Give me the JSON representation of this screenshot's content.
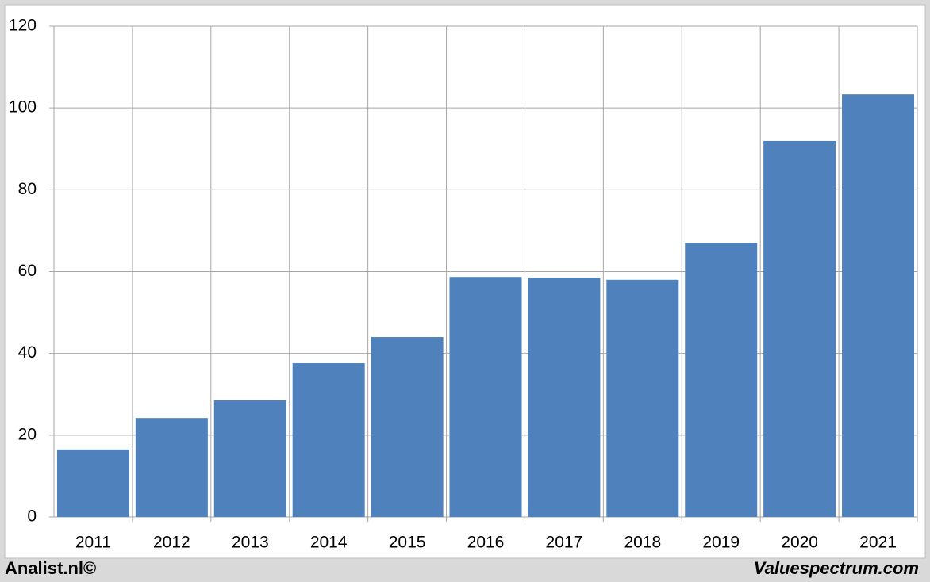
{
  "chart_data": {
    "type": "bar",
    "categories": [
      "2011",
      "2012",
      "2013",
      "2014",
      "2015",
      "2016",
      "2017",
      "2018",
      "2019",
      "2020",
      "2021"
    ],
    "values": [
      16.5,
      24.2,
      28.5,
      37.6,
      44,
      58.7,
      58.5,
      58,
      67,
      91.9,
      103.3
    ],
    "color": "#4f81bd",
    "ylim": [
      0,
      120
    ],
    "yticks": [
      0,
      20,
      40,
      60,
      80,
      100,
      120
    ],
    "grid": true,
    "source": "Analist.nl©",
    "watermark": "Valuespectrum.com"
  }
}
